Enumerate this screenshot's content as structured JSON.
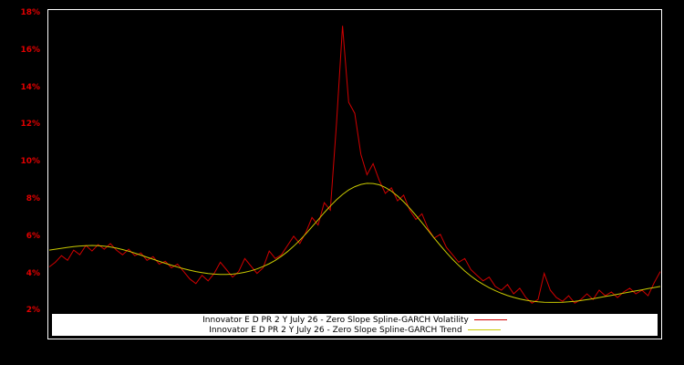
{
  "chart_data": {
    "type": "line",
    "title": "",
    "xlabel": "",
    "ylabel": "",
    "grid": false,
    "background": "#000000",
    "axis_label_color": "#e00000",
    "legend_position": "bottom-inside",
    "ylim": [
      0.5,
      18.15
    ],
    "yticks": [
      {
        "label": "18%",
        "value": 18
      },
      {
        "label": "16%",
        "value": 16
      },
      {
        "label": "14%",
        "value": 14
      },
      {
        "label": "12%",
        "value": 12
      },
      {
        "label": "10%",
        "value": 10
      },
      {
        "label": "8%",
        "value": 8
      },
      {
        "label": "6%",
        "value": 6
      },
      {
        "label": "4%",
        "value": 4
      },
      {
        "label": "2%",
        "value": 2
      }
    ],
    "series": [
      {
        "id": "volatility",
        "name": "Innovator E D PR 2 Y July 26 - Zero Slope Spline-GARCH Volatility",
        "color": "#d10000",
        "values": [
          4.35,
          4.6,
          4.95,
          4.7,
          5.25,
          5.0,
          5.5,
          5.2,
          5.55,
          5.3,
          5.6,
          5.25,
          5.0,
          5.3,
          4.95,
          5.1,
          4.7,
          4.9,
          4.5,
          4.65,
          4.3,
          4.5,
          4.1,
          3.7,
          3.45,
          3.9,
          3.6,
          4.0,
          4.6,
          4.2,
          3.8,
          4.1,
          4.8,
          4.4,
          4.0,
          4.3,
          5.2,
          4.8,
          5.0,
          5.5,
          6.0,
          5.6,
          6.2,
          7.0,
          6.6,
          7.8,
          7.4,
          12.0,
          17.3,
          13.2,
          12.6,
          10.4,
          9.3,
          9.9,
          9.0,
          8.3,
          8.6,
          7.9,
          8.2,
          7.4,
          6.9,
          7.2,
          6.4,
          5.9,
          6.1,
          5.4,
          5.0,
          4.6,
          4.8,
          4.2,
          3.9,
          3.6,
          3.8,
          3.3,
          3.1,
          3.4,
          2.9,
          3.2,
          2.7,
          2.4,
          2.6,
          4.0,
          3.1,
          2.7,
          2.5,
          2.8,
          2.4,
          2.6,
          2.9,
          2.6,
          3.1,
          2.8,
          3.0,
          2.7,
          3.0,
          3.2,
          2.9,
          3.1,
          2.8,
          3.5,
          4.1
        ]
      },
      {
        "id": "trend",
        "name": "Innovator E D PR 2 Y July 26 - Zero Slope Spline-GARCH Trend",
        "color": "#c9c900",
        "values": [
          5.25,
          5.3,
          5.35,
          5.4,
          5.44,
          5.47,
          5.49,
          5.5,
          5.49,
          5.46,
          5.42,
          5.36,
          5.28,
          5.19,
          5.09,
          4.98,
          4.87,
          4.76,
          4.65,
          4.54,
          4.44,
          4.34,
          4.25,
          4.17,
          4.1,
          4.04,
          3.99,
          3.96,
          3.94,
          3.94,
          3.96,
          4.0,
          4.06,
          4.14,
          4.24,
          4.37,
          4.52,
          4.7,
          4.92,
          5.17,
          5.46,
          5.78,
          6.13,
          6.5,
          6.88,
          7.26,
          7.62,
          7.95,
          8.24,
          8.48,
          8.66,
          8.78,
          8.84,
          8.83,
          8.76,
          8.62,
          8.42,
          8.16,
          7.85,
          7.5,
          7.12,
          6.72,
          6.31,
          5.9,
          5.5,
          5.12,
          4.76,
          4.43,
          4.13,
          3.86,
          3.62,
          3.41,
          3.23,
          3.07,
          2.93,
          2.81,
          2.71,
          2.63,
          2.56,
          2.51,
          2.47,
          2.45,
          2.44,
          2.44,
          2.45,
          2.47,
          2.5,
          2.54,
          2.59,
          2.64,
          2.7,
          2.76,
          2.82,
          2.88,
          2.94,
          3.0,
          3.06,
          3.12,
          3.18,
          3.24,
          3.3
        ]
      }
    ]
  }
}
